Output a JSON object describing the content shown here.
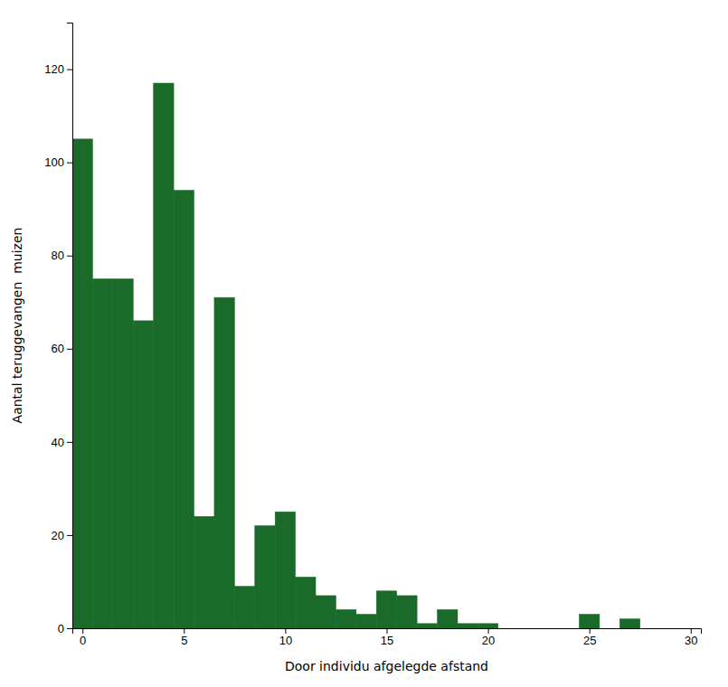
{
  "chart_data": {
    "type": "bar",
    "xlabel": "Door individu afgelegde afstand",
    "ylabel": "Aantal teruggevangen  muizen",
    "x": [
      0,
      1,
      2,
      3,
      4,
      5,
      6,
      7,
      8,
      9,
      10,
      11,
      12,
      13,
      14,
      15,
      16,
      17,
      18,
      19,
      20,
      21,
      22,
      23,
      24,
      25,
      26,
      27,
      28,
      29
    ],
    "values": [
      105,
      75,
      75,
      66,
      117,
      94,
      24,
      71,
      9,
      22,
      25,
      11,
      7,
      4,
      3,
      8,
      7,
      1,
      4,
      1,
      1,
      0,
      0,
      0,
      0,
      3,
      0,
      2,
      0,
      0
    ],
    "color": "#1a6b2a",
    "xlim": [
      -0.5,
      30.5
    ],
    "ylim": [
      0,
      130
    ],
    "xticks": [
      0,
      5,
      10,
      15,
      20,
      25,
      30
    ],
    "yticks": [
      0,
      20,
      40,
      60,
      80,
      100,
      120
    ],
    "grid": false
  }
}
